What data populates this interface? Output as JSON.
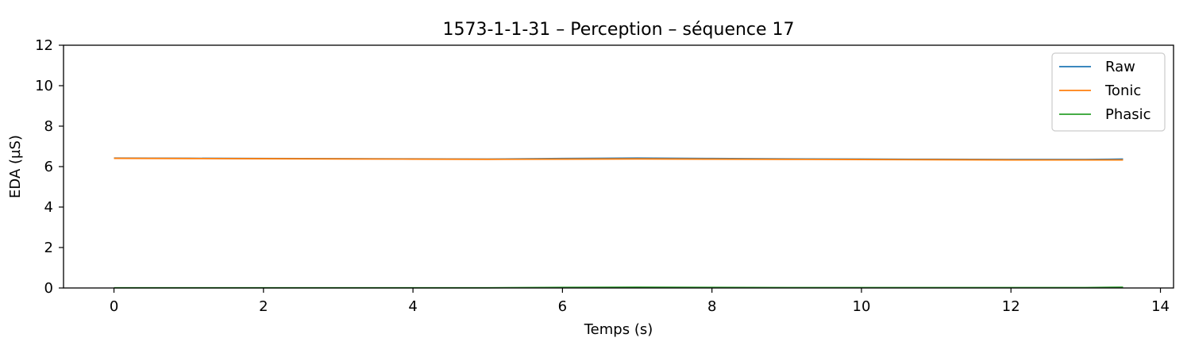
{
  "chart_data": {
    "type": "line",
    "title": "1573-1-1-31 – Perception – séquence 17",
    "xlabel": "Temps (s)",
    "ylabel": "EDA (µS)",
    "xlim": [
      -0.675,
      14.175
    ],
    "ylim": [
      0,
      12
    ],
    "xticks": [
      0,
      2,
      4,
      6,
      8,
      10,
      12,
      14
    ],
    "yticks": [
      0,
      2,
      4,
      6,
      8,
      10,
      12
    ],
    "grid": false,
    "legend_position": "top-right",
    "series": [
      {
        "name": "Raw",
        "color": "#1f77b4",
        "x": [
          0,
          1,
          2,
          3,
          4,
          5,
          6,
          7,
          8,
          9,
          10,
          11,
          12,
          13,
          13.5
        ],
        "y": [
          6.42,
          6.41,
          6.4,
          6.39,
          6.38,
          6.37,
          6.4,
          6.42,
          6.4,
          6.38,
          6.37,
          6.36,
          6.35,
          6.35,
          6.37
        ]
      },
      {
        "name": "Tonic",
        "color": "#ff7f0e",
        "x": [
          0,
          1,
          2,
          3,
          4,
          5,
          6,
          7,
          8,
          9,
          10,
          11,
          12,
          13,
          13.5
        ],
        "y": [
          6.41,
          6.4,
          6.39,
          6.38,
          6.37,
          6.36,
          6.37,
          6.38,
          6.37,
          6.36,
          6.35,
          6.34,
          6.33,
          6.33,
          6.33
        ]
      },
      {
        "name": "Phasic",
        "color": "#2ca02c",
        "x": [
          0,
          1,
          2,
          3,
          4,
          5,
          6,
          7,
          8,
          9,
          10,
          11,
          12,
          13,
          13.5
        ],
        "y": [
          0.01,
          0.01,
          0.01,
          0.01,
          0.01,
          0.01,
          0.03,
          0.04,
          0.03,
          0.02,
          0.02,
          0.02,
          0.02,
          0.02,
          0.04
        ]
      }
    ]
  }
}
